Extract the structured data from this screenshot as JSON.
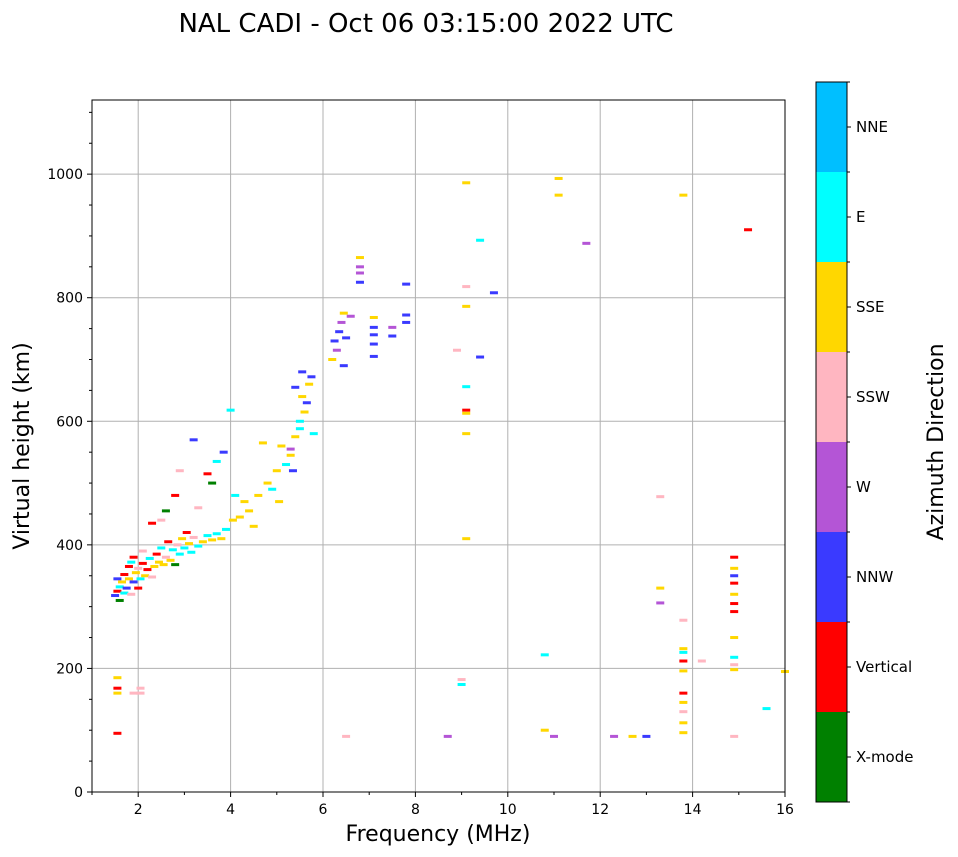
{
  "chart_data": {
    "type": "scatter",
    "title": "NAL CADI - Oct 06 03:15:00 2022 UTC",
    "xlabel": "Frequency (MHz)",
    "ylabel": "Virtual height (km)",
    "xlim": [
      1,
      16
    ],
    "ylim": [
      0,
      1120
    ],
    "xticks": [
      2,
      4,
      6,
      8,
      10,
      12,
      14,
      16
    ],
    "yticks": [
      0,
      200,
      400,
      600,
      800,
      1000
    ],
    "grid": true,
    "colorbar": {
      "label": "Azimuth Direction",
      "categories": [
        {
          "name": "X-mode",
          "color": "#008000"
        },
        {
          "name": "Vertical",
          "color": "#ff0000"
        },
        {
          "name": "NNW",
          "color": "#3a3aff"
        },
        {
          "name": "W",
          "color": "#b455d6"
        },
        {
          "name": "SSW",
          "color": "#ffb6c1"
        },
        {
          "name": "SSE",
          "color": "#ffd700"
        },
        {
          "name": "E",
          "color": "#00ffff"
        },
        {
          "name": "NNE",
          "color": "#00bfff"
        }
      ]
    },
    "points": [
      [
        1.5,
        318,
        "NNW"
      ],
      [
        1.55,
        325,
        "Vertical"
      ],
      [
        1.6,
        332,
        "E"
      ],
      [
        1.55,
        345,
        "NNW"
      ],
      [
        1.6,
        310,
        "X-mode"
      ],
      [
        1.65,
        340,
        "SSE"
      ],
      [
        1.7,
        322,
        "E"
      ],
      [
        1.7,
        352,
        "Vertical"
      ],
      [
        1.75,
        330,
        "NNW"
      ],
      [
        1.8,
        345,
        "SSE"
      ],
      [
        1.8,
        365,
        "Vertical"
      ],
      [
        1.85,
        320,
        "SSW"
      ],
      [
        1.85,
        372,
        "E"
      ],
      [
        1.9,
        340,
        "NNW"
      ],
      [
        1.9,
        380,
        "Vertical"
      ],
      [
        1.95,
        355,
        "SSE"
      ],
      [
        2.0,
        330,
        "Vertical"
      ],
      [
        2.0,
        362,
        "SSW"
      ],
      [
        2.05,
        345,
        "E"
      ],
      [
        2.1,
        370,
        "Vertical"
      ],
      [
        2.1,
        390,
        "SSW"
      ],
      [
        2.15,
        350,
        "SSE"
      ],
      [
        2.2,
        360,
        "Vertical"
      ],
      [
        2.25,
        378,
        "E"
      ],
      [
        2.3,
        348,
        "SSW"
      ],
      [
        2.35,
        365,
        "SSE"
      ],
      [
        2.4,
        385,
        "Vertical"
      ],
      [
        2.45,
        372,
        "SSE"
      ],
      [
        2.5,
        395,
        "E"
      ],
      [
        2.55,
        368,
        "SSE"
      ],
      [
        2.6,
        380,
        "SSW"
      ],
      [
        2.65,
        405,
        "Vertical"
      ],
      [
        2.7,
        375,
        "SSE"
      ],
      [
        2.75,
        392,
        "E"
      ],
      [
        2.8,
        368,
        "X-mode"
      ],
      [
        2.85,
        400,
        "SSW"
      ],
      [
        2.9,
        385,
        "E"
      ],
      [
        2.95,
        410,
        "SSE"
      ],
      [
        3.0,
        395,
        "E"
      ],
      [
        3.05,
        420,
        "Vertical"
      ],
      [
        3.1,
        402,
        "SSE"
      ],
      [
        3.15,
        388,
        "E"
      ],
      [
        3.2,
        412,
        "SSW"
      ],
      [
        3.3,
        398,
        "E"
      ],
      [
        3.4,
        405,
        "SSE"
      ],
      [
        3.5,
        415,
        "E"
      ],
      [
        3.6,
        408,
        "SSE"
      ],
      [
        3.7,
        418,
        "E"
      ],
      [
        3.8,
        410,
        "SSE"
      ],
      [
        3.9,
        425,
        "E"
      ],
      [
        2.3,
        435,
        "Vertical"
      ],
      [
        2.5,
        440,
        "SSW"
      ],
      [
        2.6,
        455,
        "X-mode"
      ],
      [
        2.8,
        480,
        "Vertical"
      ],
      [
        2.9,
        520,
        "SSW"
      ],
      [
        3.2,
        570,
        "NNW"
      ],
      [
        3.3,
        460,
        "SSW"
      ],
      [
        3.5,
        515,
        "Vertical"
      ],
      [
        3.6,
        500,
        "X-mode"
      ],
      [
        3.7,
        535,
        "E"
      ],
      [
        3.85,
        550,
        "NNW"
      ],
      [
        4.0,
        618,
        "E"
      ],
      [
        4.05,
        440,
        "SSE"
      ],
      [
        4.1,
        480,
        "E"
      ],
      [
        4.2,
        445,
        "SSE"
      ],
      [
        4.3,
        470,
        "SSE"
      ],
      [
        4.4,
        455,
        "SSE"
      ],
      [
        4.5,
        430,
        "SSE"
      ],
      [
        4.6,
        480,
        "SSE"
      ],
      [
        4.7,
        565,
        "SSE"
      ],
      [
        4.8,
        500,
        "SSE"
      ],
      [
        4.9,
        490,
        "E"
      ],
      [
        5.0,
        520,
        "SSE"
      ],
      [
        5.05,
        470,
        "SSE"
      ],
      [
        5.1,
        560,
        "SSE"
      ],
      [
        5.2,
        530,
        "E"
      ],
      [
        5.3,
        545,
        "SSE"
      ],
      [
        5.35,
        520,
        "NNW"
      ],
      [
        5.4,
        575,
        "SSE"
      ],
      [
        5.5,
        588,
        "E"
      ],
      [
        5.55,
        640,
        "SSE"
      ],
      [
        5.6,
        615,
        "SSE"
      ],
      [
        5.65,
        630,
        "NNW"
      ],
      [
        5.7,
        660,
        "SSE"
      ],
      [
        5.75,
        672,
        "NNW"
      ],
      [
        5.8,
        580,
        "E"
      ],
      [
        5.4,
        655,
        "NNW"
      ],
      [
        5.5,
        600,
        "E"
      ],
      [
        5.55,
        680,
        "NNW"
      ],
      [
        5.3,
        555,
        "W"
      ],
      [
        6.2,
        700,
        "SSE"
      ],
      [
        6.25,
        730,
        "NNW"
      ],
      [
        6.3,
        715,
        "W"
      ],
      [
        6.35,
        745,
        "NNW"
      ],
      [
        6.4,
        760,
        "W"
      ],
      [
        6.45,
        775,
        "SSE"
      ],
      [
        6.5,
        735,
        "NNW"
      ],
      [
        6.45,
        690,
        "NNW"
      ],
      [
        6.6,
        770,
        "W"
      ],
      [
        6.8,
        865,
        "SSE"
      ],
      [
        6.8,
        850,
        "W"
      ],
      [
        6.8,
        840,
        "W"
      ],
      [
        6.8,
        825,
        "NNW"
      ],
      [
        7.1,
        768,
        "SSE"
      ],
      [
        7.1,
        752,
        "NNW"
      ],
      [
        7.1,
        740,
        "NNW"
      ],
      [
        7.1,
        725,
        "NNW"
      ],
      [
        7.1,
        705,
        "NNW"
      ],
      [
        7.5,
        752,
        "W"
      ],
      [
        7.5,
        738,
        "NNW"
      ],
      [
        7.8,
        822,
        "NNW"
      ],
      [
        7.8,
        772,
        "NNW"
      ],
      [
        7.8,
        760,
        "NNW"
      ],
      [
        8.9,
        715,
        "SSW"
      ],
      [
        9.1,
        986,
        "SSE"
      ],
      [
        9.1,
        818,
        "SSW"
      ],
      [
        9.1,
        786,
        "SSE"
      ],
      [
        9.1,
        656,
        "E"
      ],
      [
        9.1,
        618,
        "Vertical"
      ],
      [
        9.1,
        613,
        "SSE"
      ],
      [
        9.1,
        580,
        "SSE"
      ],
      [
        9.1,
        410,
        "SSE"
      ],
      [
        9.4,
        893,
        "E"
      ],
      [
        9.4,
        704,
        "NNW"
      ],
      [
        9.7,
        808,
        "NNW"
      ],
      [
        11.1,
        993,
        "SSE"
      ],
      [
        11.1,
        966,
        "SSE"
      ],
      [
        11.7,
        888,
        "W"
      ],
      [
        13.8,
        966,
        "SSE"
      ],
      [
        15.2,
        910,
        "Vertical"
      ],
      [
        13.3,
        478,
        "SSW"
      ],
      [
        13.3,
        330,
        "SSE"
      ],
      [
        13.3,
        306,
        "W"
      ],
      [
        13.8,
        278,
        "SSW"
      ],
      [
        13.8,
        232,
        "SSE"
      ],
      [
        13.8,
        226,
        "E"
      ],
      [
        13.8,
        212,
        "Vertical"
      ],
      [
        13.8,
        196,
        "SSE"
      ],
      [
        13.8,
        160,
        "Vertical"
      ],
      [
        13.8,
        145,
        "SSE"
      ],
      [
        13.8,
        130,
        "SSW"
      ],
      [
        13.8,
        112,
        "SSE"
      ],
      [
        13.8,
        96,
        "SSE"
      ],
      [
        14.2,
        212,
        "SSW"
      ],
      [
        14.9,
        380,
        "Vertical"
      ],
      [
        14.9,
        362,
        "SSE"
      ],
      [
        14.9,
        350,
        "NNW"
      ],
      [
        14.9,
        338,
        "Vertical"
      ],
      [
        14.9,
        320,
        "SSE"
      ],
      [
        14.9,
        305,
        "Vertical"
      ],
      [
        14.9,
        292,
        "Vertical"
      ],
      [
        14.9,
        250,
        "SSE"
      ],
      [
        14.9,
        218,
        "E"
      ],
      [
        14.9,
        206,
        "SSW"
      ],
      [
        14.9,
        198,
        "SSE"
      ],
      [
        14.9,
        90,
        "SSW"
      ],
      [
        15.6,
        135,
        "E"
      ],
      [
        16.0,
        195,
        "SSE"
      ],
      [
        10.8,
        222,
        "E"
      ],
      [
        10.8,
        100,
        "SSE"
      ],
      [
        11.0,
        90,
        "W"
      ],
      [
        9.0,
        182,
        "SSW"
      ],
      [
        9.0,
        174,
        "E"
      ],
      [
        8.7,
        90,
        "W"
      ],
      [
        12.3,
        90,
        "W"
      ],
      [
        12.7,
        90,
        "SSE"
      ],
      [
        13.0,
        90,
        "NNW"
      ],
      [
        6.5,
        90,
        "SSW"
      ],
      [
        1.55,
        185,
        "SSE"
      ],
      [
        1.55,
        168,
        "Vertical"
      ],
      [
        1.55,
        160,
        "SSE"
      ],
      [
        1.55,
        95,
        "Vertical"
      ],
      [
        1.9,
        160,
        "SSW"
      ],
      [
        2.05,
        168,
        "SSW"
      ],
      [
        2.05,
        160,
        "SSW"
      ]
    ]
  }
}
